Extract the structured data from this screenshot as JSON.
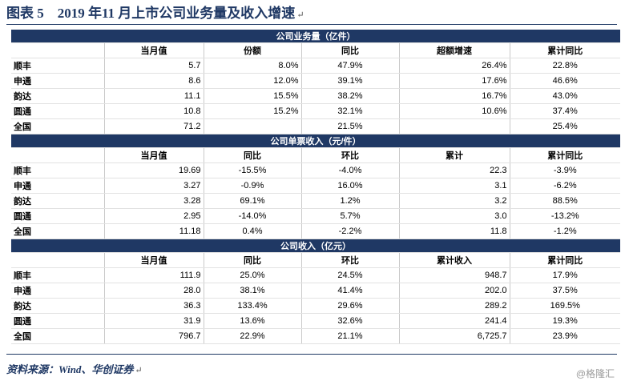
{
  "title": "图表 5　2019 年11 月上市公司业务量及收入增速",
  "paragraph_mark": "↵",
  "sections": [
    {
      "title": "公司业务量（亿件）",
      "headers": [
        "",
        "当月值",
        "份额",
        "同比",
        "超额增速",
        "累计同比"
      ],
      "rows": [
        [
          "顺丰",
          "5.7",
          "8.0%",
          "47.9%",
          "26.4%",
          "22.8%"
        ],
        [
          "申通",
          "8.6",
          "12.0%",
          "39.1%",
          "17.6%",
          "46.6%"
        ],
        [
          "韵达",
          "11.1",
          "15.5%",
          "38.2%",
          "16.7%",
          "43.0%"
        ],
        [
          "圆通",
          "10.8",
          "15.2%",
          "32.1%",
          "10.6%",
          "37.4%"
        ],
        [
          "全国",
          "71.2",
          "",
          "21.5%",
          "",
          "25.4%"
        ]
      ]
    },
    {
      "title": "公司单票收入（元/件）",
      "headers": [
        "",
        "当月值",
        "同比",
        "环比",
        "累计",
        "累计同比"
      ],
      "rows": [
        [
          "顺丰",
          "19.69",
          "-15.5%",
          "-4.0%",
          "22.3",
          "-3.9%"
        ],
        [
          "申通",
          "3.27",
          "-0.9%",
          "16.0%",
          "3.1",
          "-6.2%"
        ],
        [
          "韵达",
          "3.28",
          "69.1%",
          "1.2%",
          "3.2",
          "88.5%"
        ],
        [
          "圆通",
          "2.95",
          "-14.0%",
          "5.7%",
          "3.0",
          "-13.2%"
        ],
        [
          "全国",
          "11.18",
          "0.4%",
          "-2.2%",
          "11.8",
          "-1.2%"
        ]
      ]
    },
    {
      "title": "公司收入（亿元）",
      "headers": [
        "",
        "当月值",
        "同比",
        "环比",
        "累计收入",
        "累计同比"
      ],
      "rows": [
        [
          "顺丰",
          "111.9",
          "25.0%",
          "24.5%",
          "948.7",
          "17.9%"
        ],
        [
          "申通",
          "28.0",
          "38.1%",
          "41.4%",
          "202.0",
          "37.5%"
        ],
        [
          "韵达",
          "36.3",
          "133.4%",
          "29.6%",
          "289.2",
          "169.5%"
        ],
        [
          "圆通",
          "31.9",
          "13.6%",
          "32.6%",
          "241.4",
          "19.3%"
        ],
        [
          "全国",
          "796.7",
          "22.9%",
          "21.1%",
          "6,725.7",
          "23.9%"
        ]
      ]
    }
  ],
  "source": "资料来源：Wind、华创证券",
  "watermark": "@格隆汇"
}
